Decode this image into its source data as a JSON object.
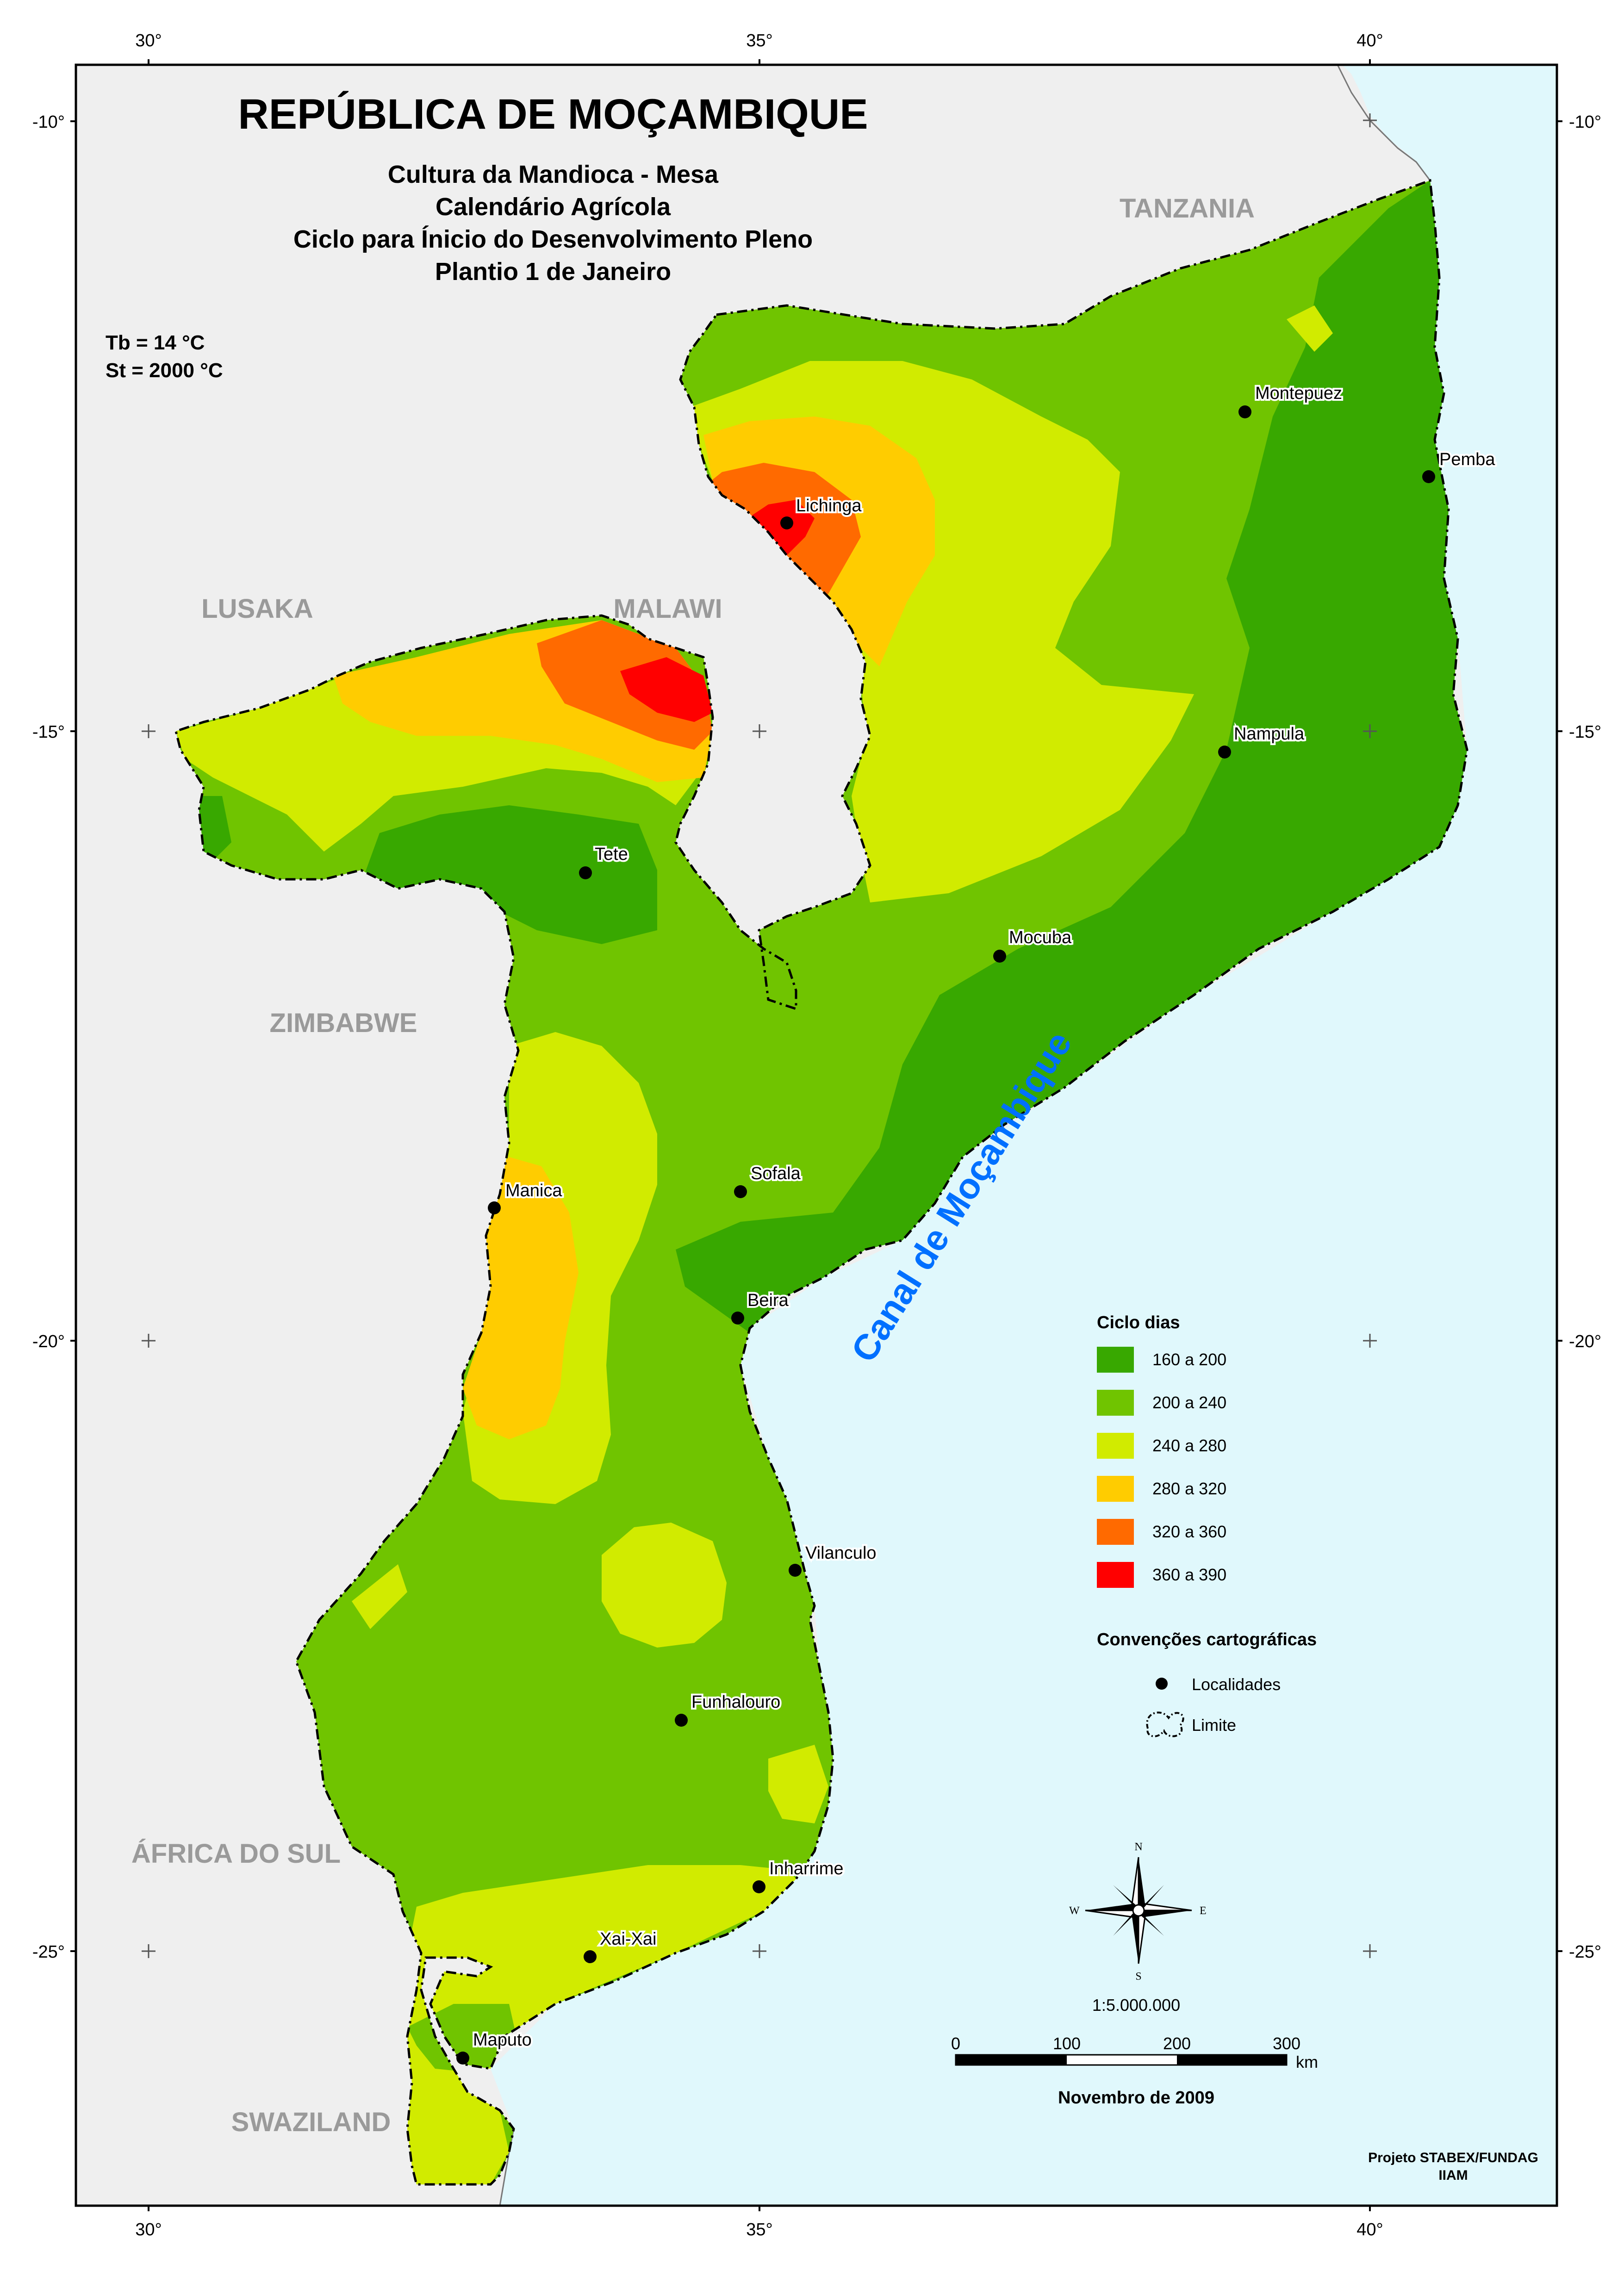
{
  "map": {
    "title": "REPÚBLICA DE MOÇAMBIQUE",
    "subtitle_lines": [
      "Cultura da Mandioca - Mesa",
      "Calendário Agrícola",
      "Ciclo para Ínicio do Desenvolvimento Pleno",
      "Plantio 1 de Janeiro"
    ],
    "params": [
      "Tb = 14 °C",
      "St =  2000 °C"
    ],
    "lon_ticks": [
      "30°",
      "35°",
      "40°"
    ],
    "lat_ticks": [
      "-10°",
      "-15°",
      "-20°",
      "-25°"
    ],
    "countries": [
      "TANZANIA",
      "LUSAKA",
      "MALAWI",
      "ZIMBABWE",
      "ÁFRICA DO SUL",
      "SWAZILAND"
    ],
    "sea_label": "Canal de Moçambique",
    "cities": [
      "Montepuez",
      "Pemba",
      "Lichinga",
      "Nampula",
      "Tete",
      "Mocuba",
      "Sofala",
      "Manica",
      "Beira",
      "Vilanculo",
      "Funhalouro",
      "Inharrime",
      "Xai-Xai",
      "Maputo"
    ],
    "colors": {
      "c1": "#38a800",
      "c2": "#70c400",
      "c3": "#d1eb00",
      "c4": "#ffcc00",
      "c5": "#ff6a00",
      "c6": "#ff0000",
      "sea": "#e0f8fc",
      "land": "#efefef"
    }
  },
  "legend": {
    "title": "Ciclo dias",
    "classes": [
      "160 a 200",
      "200 a 240",
      "240 a 280",
      "280 a 320",
      "320 a 360",
      "360 a 390"
    ],
    "conv_title": "Convenções cartográficas",
    "conv_items": [
      "Localidades",
      "Limite"
    ]
  },
  "compass": {
    "n": "N",
    "s": "S",
    "e": "E",
    "w": "W"
  },
  "scale": {
    "ratio": "1:5.000.000",
    "labels": [
      "0",
      "100",
      "200",
      "300"
    ],
    "unit": "km",
    "date": "Novembro de 2009"
  },
  "credits": [
    "Projeto STABEX/FUNDAG",
    "IIAM"
  ]
}
